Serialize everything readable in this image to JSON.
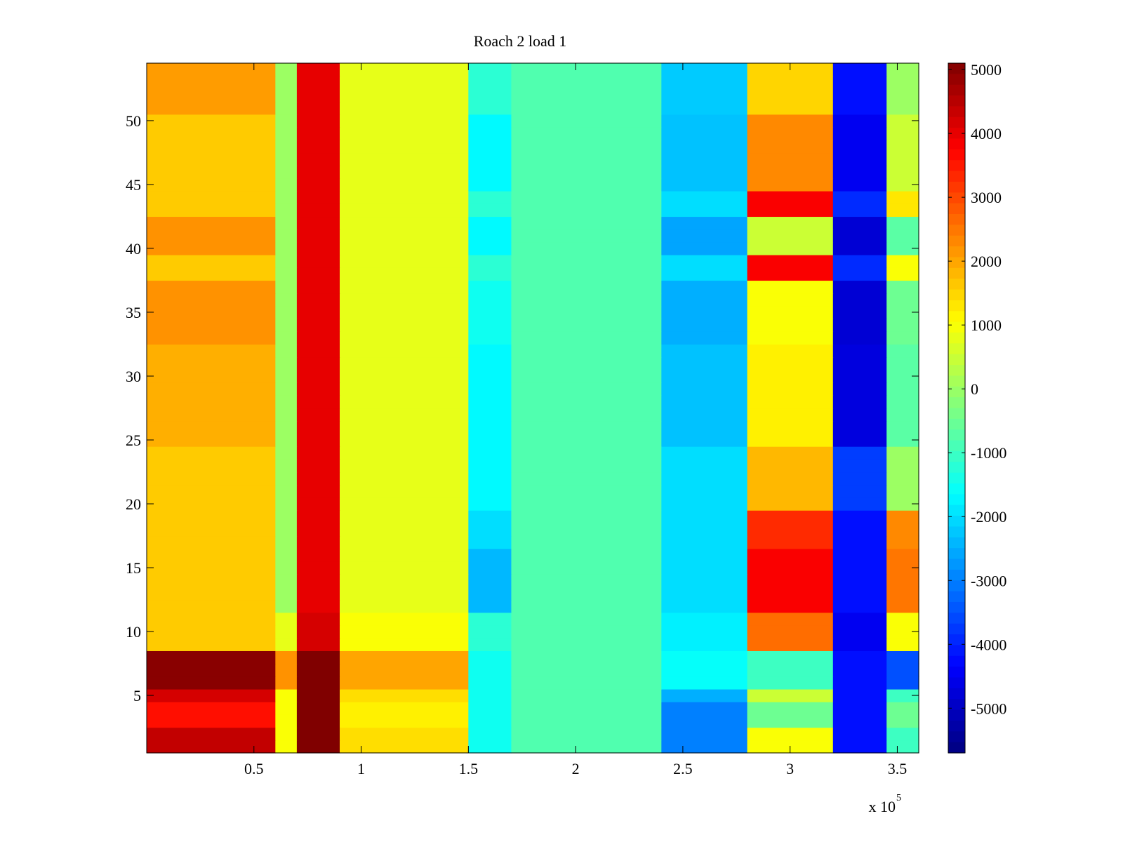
{
  "chart_data": {
    "type": "heatmap",
    "title": "Roach 2 load 1",
    "xlabel": "",
    "ylabel": "",
    "x_multiplier_text": "x 10",
    "x_multiplier_exp": "5",
    "xlim": [
      0.0,
      3.6
    ],
    "ylim": [
      0.5,
      54.5
    ],
    "x_ticks": [
      0.5,
      1,
      1.5,
      2,
      2.5,
      3,
      3.5
    ],
    "x_tick_labels": [
      "0.5",
      "1",
      "1.5",
      "2",
      "2.5",
      "3",
      "3.5"
    ],
    "y_ticks": [
      5,
      10,
      15,
      20,
      25,
      30,
      35,
      40,
      45,
      50
    ],
    "y_tick_labels": [
      "5",
      "10",
      "15",
      "20",
      "25",
      "30",
      "35",
      "40",
      "45",
      "50"
    ],
    "colorbar": {
      "colormap": "jet",
      "min": -5700,
      "max": 5100,
      "ticks": [
        5000,
        4000,
        3000,
        2000,
        1000,
        0,
        -1000,
        -2000,
        -3000,
        -4000,
        -5000
      ],
      "tick_labels": [
        "5000",
        "4000",
        "3000",
        "2000",
        "1000",
        "0",
        "-1000",
        "-2000",
        "-3000",
        "-4000",
        "-5000"
      ]
    },
    "rows": 54,
    "columns": {
      "x_edges": [
        0.0,
        0.6,
        0.7,
        0.9,
        1.5,
        1.7,
        2.4,
        2.8,
        3.2,
        3.45,
        3.6
      ],
      "base_values": [
        1600,
        0,
        4000,
        800,
        -1200,
        -800,
        -2000,
        2000,
        -4200,
        500
      ]
    },
    "row_modifiers": [
      {
        "rows": [
          1,
          2
        ],
        "values": [
          2800,
          1000,
          1200,
          600,
          -300,
          0,
          -1000,
          -1000,
          0,
          -1500
        ]
      },
      {
        "rows": [
          3,
          4
        ],
        "values": [
          2000,
          1000,
          1200,
          400,
          -300,
          0,
          -1000,
          -2500,
          0,
          -1000
        ]
      },
      {
        "rows": [
          5,
          5
        ],
        "values": [
          2600,
          1000,
          1200,
          600,
          -300,
          0,
          -500,
          -1500,
          0,
          -1500
        ]
      },
      {
        "rows": [
          6,
          8
        ],
        "values": [
          3400,
          2200,
          1400,
          1200,
          -300,
          0,
          400,
          -3000,
          0,
          -4000
        ]
      },
      {
        "rows": [
          9,
          11
        ],
        "values": [
          0,
          800,
          200,
          200,
          0,
          0,
          200,
          600,
          -300,
          500
        ]
      },
      {
        "rows": [
          12,
          16
        ],
        "values": [
          0,
          0,
          0,
          0,
          -1200,
          0,
          0,
          1800,
          0,
          2000
        ]
      },
      {
        "rows": [
          17,
          19
        ],
        "values": [
          0,
          0,
          0,
          0,
          -800,
          0,
          0,
          1300,
          0,
          1800
        ]
      },
      {
        "rows": [
          20,
          24
        ],
        "values": [
          0,
          0,
          0,
          0,
          -500,
          0,
          0,
          -200,
          500,
          -500
        ]
      },
      {
        "rows": [
          25,
          32
        ],
        "values": [
          300,
          0,
          0,
          0,
          -500,
          0,
          -300,
          -800,
          -500,
          -1200
        ]
      },
      {
        "rows": [
          33,
          37
        ],
        "values": [
          600,
          0,
          0,
          0,
          -300,
          0,
          -500,
          -1000,
          -600,
          -1000
        ]
      },
      {
        "rows": [
          38,
          39
        ],
        "values": [
          0,
          0,
          0,
          0,
          0,
          0,
          0,
          1800,
          300,
          500
        ]
      },
      {
        "rows": [
          40,
          42
        ],
        "values": [
          600,
          0,
          0,
          0,
          -500,
          0,
          -600,
          -1500,
          -600,
          -1200
        ]
      },
      {
        "rows": [
          43,
          44
        ],
        "values": [
          0,
          0,
          0,
          0,
          0,
          0,
          0,
          1800,
          300,
          800
        ]
      },
      {
        "rows": [
          45,
          50
        ],
        "values": [
          0,
          0,
          0,
          0,
          -500,
          0,
          -300,
          300,
          -300,
          0
        ]
      },
      {
        "rows": [
          51,
          54
        ],
        "values": [
          500,
          0,
          0,
          0,
          0,
          0,
          -200,
          -500,
          0,
          -500
        ]
      }
    ]
  }
}
